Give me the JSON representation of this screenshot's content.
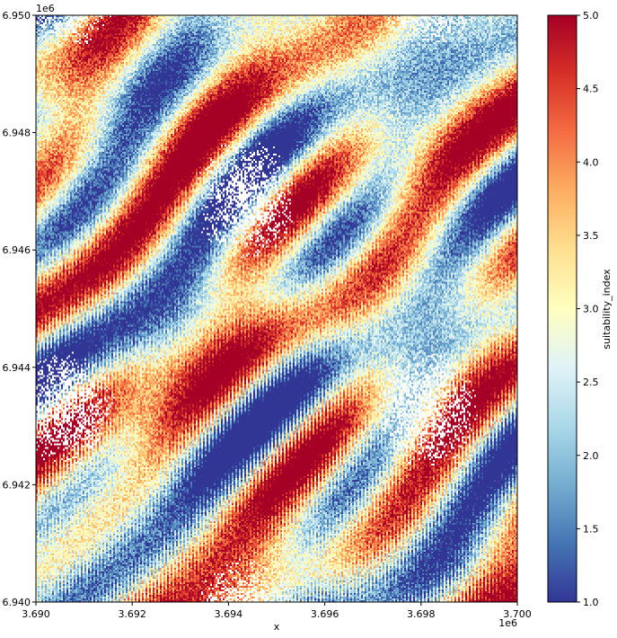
{
  "chart_data": {
    "type": "heatmap",
    "title": "",
    "xlabel": "x",
    "ylabel": "",
    "x_offset_label": "1e6",
    "y_offset_label": "1e6",
    "x_ticks": [
      {
        "value": 3690000,
        "label": "3.690"
      },
      {
        "value": 3692000,
        "label": "3.692"
      },
      {
        "value": 3694000,
        "label": "3.694"
      },
      {
        "value": 3696000,
        "label": "3.696"
      },
      {
        "value": 3698000,
        "label": "3.698"
      },
      {
        "value": 3700000,
        "label": "3.700"
      }
    ],
    "y_ticks": [
      {
        "value": 6940000,
        "label": "6.940"
      },
      {
        "value": 6942000,
        "label": "6.942"
      },
      {
        "value": 6944000,
        "label": "6.944"
      },
      {
        "value": 6946000,
        "label": "6.946"
      },
      {
        "value": 6948000,
        "label": "6.948"
      },
      {
        "value": 6950000,
        "label": "6.950"
      }
    ],
    "xlim": [
      3690000,
      3700000
    ],
    "ylim": [
      6940000,
      6950000
    ],
    "colorbar": {
      "label": "suitability_index",
      "colormap": "RdYlBu_r",
      "vmin": 1.0,
      "vmax": 5.0,
      "ticks": [
        {
          "value": 1.0,
          "label": "1.0"
        },
        {
          "value": 1.5,
          "label": "1.5"
        },
        {
          "value": 2.0,
          "label": "2.0"
        },
        {
          "value": 2.5,
          "label": "2.5"
        },
        {
          "value": 3.0,
          "label": "3.0"
        },
        {
          "value": 3.5,
          "label": "3.5"
        },
        {
          "value": 4.0,
          "label": "4.0"
        },
        {
          "value": 4.5,
          "label": "4.5"
        },
        {
          "value": 5.0,
          "label": "5.0"
        }
      ],
      "colors": [
        "#313695",
        "#4575b4",
        "#74add1",
        "#abd9e9",
        "#e0f3f8",
        "#ffffbf",
        "#fee090",
        "#fdae61",
        "#f46d43",
        "#d73027",
        "#a50026"
      ]
    },
    "grid": false,
    "legend": "none",
    "missing_color": "#ffffff"
  }
}
